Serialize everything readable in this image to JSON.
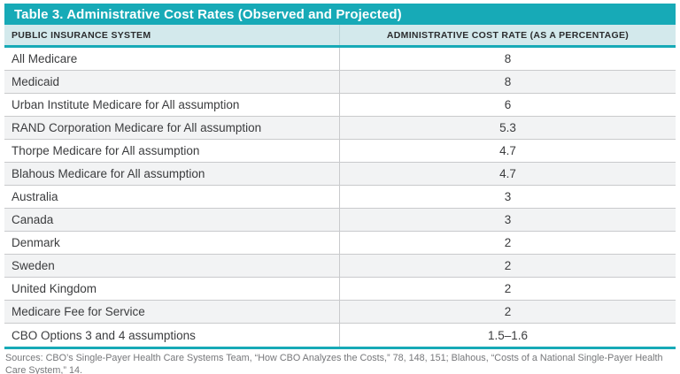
{
  "title": "Table 3. Administrative Cost Rates (Observed and Projected)",
  "table": {
    "col_system": "PUBLIC INSURANCE SYSTEM",
    "col_rate": "ADMINISTRATIVE COST RATE (AS A PERCENTAGE)",
    "rows": [
      {
        "system": "All Medicare",
        "rate": "8"
      },
      {
        "system": "Medicaid",
        "rate": "8"
      },
      {
        "system": "Urban Institute Medicare for All assumption",
        "rate": "6"
      },
      {
        "system": "RAND Corporation Medicare for All assumption",
        "rate": "5.3"
      },
      {
        "system": "Thorpe Medicare for All assumption",
        "rate": "4.7"
      },
      {
        "system": "Blahous Medicare for All assumption",
        "rate": "4.7"
      },
      {
        "system": "Australia",
        "rate": "3"
      },
      {
        "system": "Canada",
        "rate": "3"
      },
      {
        "system": "Denmark",
        "rate": "2"
      },
      {
        "system": "Sweden",
        "rate": "2"
      },
      {
        "system": "United Kingdom",
        "rate": "2"
      },
      {
        "system": "Medicare Fee for Service",
        "rate": "2"
      },
      {
        "system": "CBO Options 3 and 4 assumptions",
        "rate": "1.5–1.6"
      }
    ]
  },
  "sources": "Sources: CBO’s Single-Payer Health Care Systems Team, “How CBO Analyzes the Costs,” 78, 148, 151; Blahous, “Costs of a National Single-Payer Health Care System,” 14.",
  "colors": {
    "teal": "#17AAB7",
    "header_bg": "#D3E9EC",
    "row_alt_bg": "#F2F3F4",
    "row_border": "#C9CACC",
    "body_text": "#3B3C3E",
    "header_text": "#2B2C2E",
    "source_text": "#76777A"
  }
}
